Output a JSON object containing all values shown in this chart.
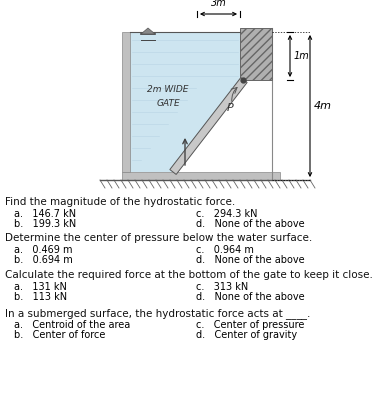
{
  "bg_color": "#ffffff",
  "diagram": {
    "water_fill_color": "#cde5f0",
    "wall_color": "#b8b8b8",
    "gate_color": "#c8c8c8",
    "dim_3m_label": "3m",
    "dim_1m_label": "1m",
    "dim_4m_label": "4m",
    "gate_label_line1": "2m WIDE",
    "gate_label_line2": "GATE",
    "pivot_label": "P"
  },
  "q1": {
    "question": "Find the magnitude of the hydrostatic force.",
    "a": "146.7 kN",
    "b": "199.3 kN",
    "c": "294.3 kN",
    "d": "None of the above"
  },
  "q2": {
    "question": "Determine the center of pressure below the water surface.",
    "a": "0.469 m",
    "b": "0.694 m",
    "c": "0.964 m",
    "d": "None of the above"
  },
  "q3": {
    "question": "Calculate the required force at the bottom of the gate to keep it close.",
    "a": "131 kN",
    "b": "113 kN",
    "c": "313 kN",
    "d": "None of the above"
  },
  "q4": {
    "question": "In a submerged surface, the hydrostatic force acts at ____.",
    "a": "Centroid of the area",
    "b": "Center of force",
    "c": "Center of pressure",
    "d": "Center of gravity"
  },
  "font_size_question": 7.5,
  "font_size_answer": 7.0,
  "font_family": "DejaVu Sans"
}
